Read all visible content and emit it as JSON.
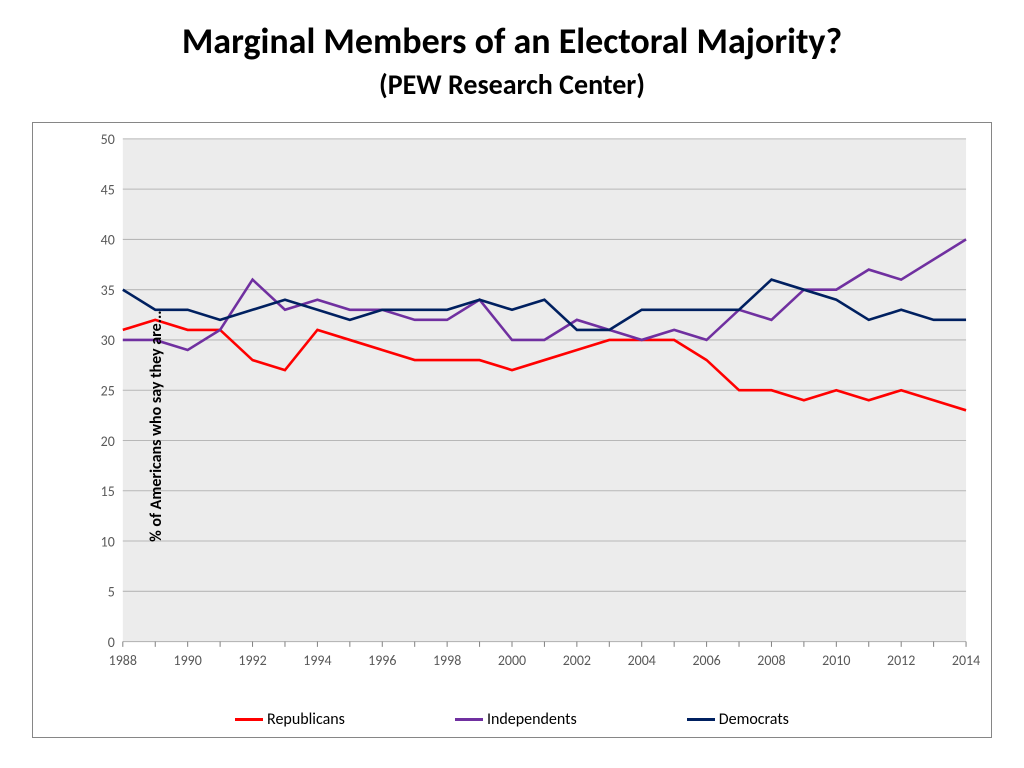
{
  "title": "Marginal Members of an Electoral Majority?",
  "subtitle": "(PEW Research Center)",
  "chart": {
    "type": "line",
    "ylabel": "% of Americans who say they are...",
    "ylim": [
      0,
      50
    ],
    "ytick_step": 5,
    "yticks": [
      0,
      5,
      10,
      15,
      20,
      25,
      30,
      35,
      40,
      45,
      50
    ],
    "xlabels": [
      "1988",
      "1989",
      "1990",
      "1991",
      "1992",
      "1993",
      "1994",
      "1995",
      "1996",
      "1997",
      "1998",
      "1999",
      "2000",
      "2001",
      "2002",
      "2003",
      "2004",
      "2005",
      "2006",
      "2007",
      "2008",
      "2009",
      "2010",
      "2011",
      "2012",
      "2013",
      "2014"
    ],
    "xticks_shown": [
      "1988",
      "1990",
      "1992",
      "1994",
      "1996",
      "1998",
      "2000",
      "2002",
      "2004",
      "2006",
      "2008",
      "2010",
      "2012",
      "2014"
    ],
    "background_color": "#ffffff",
    "plot_background_color": "#ececec",
    "grid_color": "#b7b7b7",
    "tick_color": "#808080",
    "axis_font_size": 14,
    "label_font_size": 16,
    "line_width": 2.5,
    "series": [
      {
        "name": "Republicans",
        "color": "#ff0000",
        "data": [
          31,
          32,
          31,
          31,
          28,
          27,
          31,
          30,
          29,
          28,
          28,
          28,
          27,
          28,
          29,
          30,
          30,
          30,
          28,
          25,
          25,
          24,
          25,
          24,
          25,
          24,
          23
        ]
      },
      {
        "name": "Independents",
        "color": "#7030a0",
        "data": [
          30,
          30,
          29,
          31,
          36,
          33,
          34,
          33,
          33,
          32,
          32,
          34,
          30,
          30,
          32,
          31,
          30,
          31,
          30,
          33,
          32,
          35,
          35,
          37,
          36,
          38,
          40
        ]
      },
      {
        "name": "Democrats",
        "color": "#002060",
        "data": [
          35,
          33,
          33,
          32,
          33,
          34,
          33,
          32,
          33,
          33,
          33,
          34,
          33,
          34,
          31,
          31,
          33,
          33,
          33,
          33,
          36,
          35,
          34,
          32,
          33,
          32,
          32
        ]
      }
    ]
  }
}
